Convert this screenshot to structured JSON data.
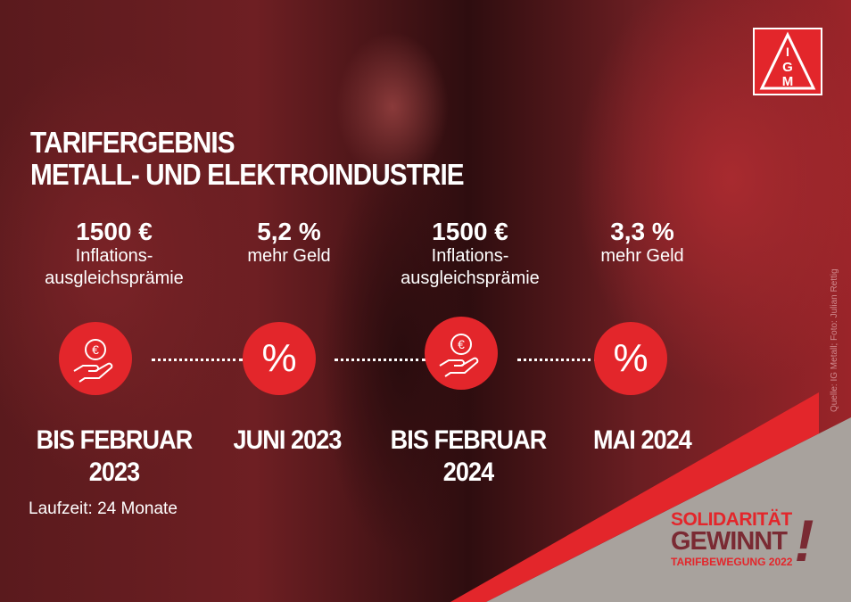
{
  "title": {
    "line1": "TARIFERGEBNIS",
    "line2": "METALL- UND ELEKTROINDUSTRIE"
  },
  "items": [
    {
      "amount": "1500 €",
      "desc1": "Inflations-",
      "desc2": "ausgleichsprämie",
      "icon": "euro-coin-hand-icon",
      "date1": "BIS FEBRUAR",
      "date2": "2023"
    },
    {
      "amount": "5,2 %",
      "desc1": "mehr Geld",
      "desc2": "",
      "icon": "percent-icon",
      "symbol": "%",
      "date1": "JUNI 2023",
      "date2": ""
    },
    {
      "amount": "1500 €",
      "desc1": "Inflations-",
      "desc2": "ausgleichsprämie",
      "icon": "euro-coin-hand-icon",
      "date1": "BIS FEBRUAR",
      "date2": "2024"
    },
    {
      "amount": "3,3 %",
      "desc1": "mehr Geld",
      "desc2": "",
      "icon": "percent-icon",
      "symbol": "%",
      "date1": "MAI 2024",
      "date2": ""
    }
  ],
  "duration": "Laufzeit: 24 Monate",
  "credit": "Quelle: IG Metall; Foto: Julian Rettig",
  "logo": {
    "text": "IGM"
  },
  "slogan": {
    "line1": "SOLIDARITÄT",
    "line2": "GEWINNT",
    "mark": "!",
    "line3": "TARIFBEWEGUNG 2022"
  },
  "colors": {
    "accent": "#e3262b",
    "gray": "#a8a29d",
    "dark_red": "#7a2a33"
  }
}
